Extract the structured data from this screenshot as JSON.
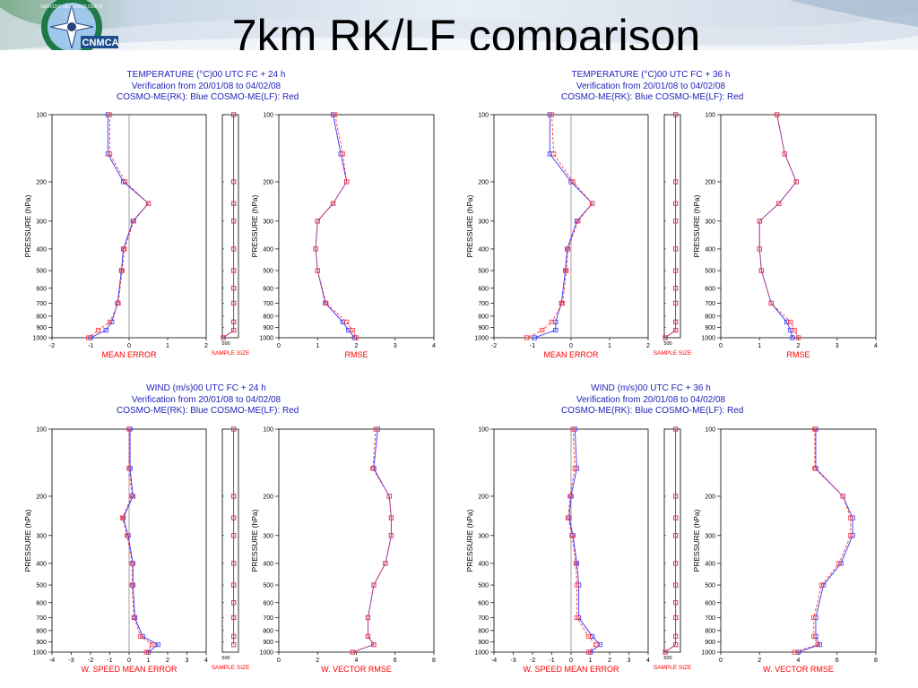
{
  "slide": {
    "title": "7km RK/LF comparison",
    "logo_text": "CNMCA",
    "logo_ring_text": "SERVIZIO METEOROLOGICO"
  },
  "panels": [
    {
      "line1": "TEMPERATURE (°C)00 UTC  FC + 24 h",
      "line2": "Verification from 20/01/08 to 04/02/08",
      "line3": "COSMO-ME(RK): Blue   COSMO-ME(LF): Red"
    },
    {
      "line1": "TEMPERATURE (°C)00 UTC  FC + 36 h",
      "line2": "Verification from 20/01/08 to 04/02/08",
      "line3": "COSMO-ME(RK): Blue   COSMO-ME(LF): Red"
    },
    {
      "line1": "WIND (m/s)00 UTC  FC + 24 h",
      "line2": "Verification from 20/01/08 to 04/02/08",
      "line3": "COSMO-ME(RK): Blue   COSMO-ME(LF): Red"
    },
    {
      "line1": "WIND (m/s)00 UTC  FC + 36 h",
      "line2": "Verification from 20/01/08 to 04/02/08",
      "line3": "COSMO-ME(RK): Blue   COSMO-ME(LF): Red"
    }
  ],
  "colors": {
    "rk": "#3333ff",
    "lf": "#ff3333",
    "label": "#ff0000",
    "axis": "#000000"
  },
  "chart_data": [
    {
      "type": "line",
      "panel": 0,
      "kind": "me",
      "xlabel": "MEAN ERROR",
      "ylabel": "PRESSURE (hPa)",
      "xlim": [
        -2,
        2
      ],
      "xticks": [
        "-2",
        "-1",
        "0",
        "1",
        "2"
      ],
      "levels": [
        100,
        150,
        200,
        250,
        300,
        400,
        500,
        700,
        850,
        925,
        1000
      ],
      "ytick_labels": [
        "100",
        "200",
        "300",
        "400",
        "500",
        "600",
        "700",
        "800",
        "900",
        "1000"
      ],
      "ytick_values": [
        100,
        200,
        300,
        400,
        500,
        600,
        700,
        800,
        900,
        1000
      ],
      "series": [
        {
          "name": "COSMO-ME(RK)",
          "values": [
            -0.55,
            -0.55,
            -0.15,
            0.5,
            0.1,
            -0.15,
            -0.2,
            -0.3,
            -0.45,
            -0.6,
            -1.0
          ]
        },
        {
          "name": "COSMO-ME(LF)",
          "values": [
            -0.5,
            -0.5,
            -0.1,
            0.5,
            0.12,
            -0.12,
            -0.18,
            -0.28,
            -0.5,
            -0.8,
            -1.05
          ]
        }
      ]
    },
    {
      "type": "line",
      "panel": 0,
      "kind": "ss",
      "xlabel": "SAMPLE SIZE",
      "xlim": [
        0,
        1000
      ],
      "xticks": [
        "500"
      ],
      "levels": [
        100,
        200,
        250,
        300,
        400,
        500,
        600,
        700,
        850,
        925,
        1000
      ],
      "series": [
        {
          "name": "COSMO-ME(RK)",
          "values": [
            700,
            700,
            700,
            700,
            700,
            700,
            700,
            700,
            700,
            700,
            60
          ]
        },
        {
          "name": "COSMO-ME(LF)",
          "values": [
            700,
            700,
            700,
            700,
            700,
            700,
            700,
            700,
            700,
            700,
            60
          ]
        }
      ]
    },
    {
      "type": "line",
      "panel": 0,
      "kind": "rmse",
      "xlabel": "RMSE",
      "xlim": [
        0,
        4
      ],
      "xticks": [
        "0",
        "1",
        "2",
        "3",
        "4"
      ],
      "levels": [
        100,
        150,
        200,
        250,
        300,
        400,
        500,
        700,
        850,
        925,
        1000
      ],
      "series": [
        {
          "name": "COSMO-ME(RK)",
          "values": [
            1.4,
            1.6,
            1.75,
            1.4,
            1.0,
            0.95,
            1.0,
            1.2,
            1.65,
            1.8,
            1.95
          ]
        },
        {
          "name": "COSMO-ME(LF)",
          "values": [
            1.45,
            1.65,
            1.75,
            1.4,
            1.0,
            0.95,
            1.0,
            1.22,
            1.75,
            1.9,
            2.0
          ]
        }
      ]
    },
    {
      "type": "line",
      "panel": 1,
      "kind": "me",
      "xlabel": "MEAN ERROR",
      "ylabel": "PRESSURE (hPa)",
      "xlim": [
        -2,
        2
      ],
      "xticks": [
        "-2",
        "-1",
        "0",
        "1",
        "2"
      ],
      "levels": [
        100,
        150,
        200,
        250,
        300,
        400,
        500,
        700,
        850,
        925,
        1000
      ],
      "ytick_labels": [
        "100",
        "200",
        "300",
        "400",
        "500",
        "600",
        "700",
        "800",
        "900",
        "1000"
      ],
      "ytick_values": [
        100,
        200,
        300,
        400,
        500,
        600,
        700,
        800,
        900,
        1000
      ],
      "series": [
        {
          "name": "COSMO-ME(RK)",
          "values": [
            -0.55,
            -0.55,
            0.0,
            0.55,
            0.15,
            -0.1,
            -0.15,
            -0.25,
            -0.4,
            -0.4,
            -0.95
          ]
        },
        {
          "name": "COSMO-ME(LF)",
          "values": [
            -0.5,
            -0.45,
            0.05,
            0.55,
            0.18,
            -0.08,
            -0.12,
            -0.22,
            -0.5,
            -0.75,
            -1.15
          ]
        }
      ]
    },
    {
      "type": "line",
      "panel": 1,
      "kind": "ss",
      "xlabel": "SAMPLE SIZE",
      "xlim": [
        0,
        1000
      ],
      "xticks": [
        "500"
      ],
      "levels": [
        100,
        200,
        250,
        300,
        400,
        500,
        600,
        700,
        850,
        925,
        1000
      ],
      "series": [
        {
          "name": "COSMO-ME(RK)",
          "values": [
            700,
            700,
            700,
            700,
            700,
            700,
            700,
            700,
            700,
            700,
            60
          ]
        },
        {
          "name": "COSMO-ME(LF)",
          "values": [
            700,
            700,
            700,
            700,
            700,
            700,
            700,
            700,
            700,
            700,
            60
          ]
        }
      ]
    },
    {
      "type": "line",
      "panel": 1,
      "kind": "rmse",
      "xlabel": "RMSE",
      "xlim": [
        0,
        4
      ],
      "xticks": [
        "0",
        "1",
        "2",
        "3",
        "4"
      ],
      "levels": [
        100,
        150,
        200,
        250,
        300,
        400,
        500,
        700,
        850,
        925,
        1000
      ],
      "series": [
        {
          "name": "COSMO-ME(RK)",
          "values": [
            1.45,
            1.65,
            1.95,
            1.5,
            1.0,
            1.0,
            1.05,
            1.3,
            1.7,
            1.8,
            1.85
          ]
        },
        {
          "name": "COSMO-ME(LF)",
          "values": [
            1.45,
            1.65,
            1.95,
            1.5,
            1.0,
            1.0,
            1.05,
            1.3,
            1.8,
            1.9,
            2.0
          ]
        }
      ]
    },
    {
      "type": "line",
      "panel": 2,
      "kind": "me",
      "xlabel": "W. SPEED MEAN ERROR",
      "ylabel": "PRESSURE (hPa)",
      "xlim": [
        -4,
        4
      ],
      "xticks": [
        "-4",
        "-3",
        "-2",
        "-1",
        "0",
        "1",
        "2",
        "3",
        "4"
      ],
      "levels": [
        100,
        150,
        200,
        250,
        300,
        400,
        500,
        700,
        850,
        925,
        1000
      ],
      "ytick_labels": [
        "100",
        "200",
        "300",
        "400",
        "500",
        "600",
        "700",
        "800",
        "900",
        "1000"
      ],
      "ytick_values": [
        100,
        200,
        300,
        400,
        500,
        600,
        700,
        800,
        900,
        1000
      ],
      "series": [
        {
          "name": "COSMO-ME(RK)",
          "values": [
            0.05,
            0.05,
            0.2,
            -0.3,
            -0.05,
            0.2,
            0.2,
            0.3,
            0.7,
            1.5,
            1.0
          ]
        },
        {
          "name": "COSMO-ME(LF)",
          "values": [
            0.0,
            0.0,
            0.15,
            -0.35,
            -0.1,
            0.15,
            0.15,
            0.25,
            0.6,
            1.2,
            0.9
          ]
        }
      ]
    },
    {
      "type": "line",
      "panel": 2,
      "kind": "ss",
      "xlabel": "SAMPLE SIZE",
      "xlim": [
        0,
        1000
      ],
      "xticks": [
        "500"
      ],
      "levels": [
        100,
        200,
        250,
        300,
        400,
        500,
        600,
        700,
        850,
        925
      ],
      "series": [
        {
          "name": "COSMO-ME(RK)",
          "values": [
            700,
            700,
            700,
            700,
            700,
            700,
            700,
            700,
            700,
            700
          ]
        },
        {
          "name": "COSMO-ME(LF)",
          "values": [
            700,
            700,
            700,
            700,
            700,
            700,
            700,
            700,
            700,
            700
          ]
        }
      ]
    },
    {
      "type": "line",
      "panel": 2,
      "kind": "rmse",
      "xlabel": "W. VECTOR RMSE",
      "xlim": [
        0,
        8
      ],
      "xticks": [
        "0",
        "2",
        "4",
        "6",
        "8"
      ],
      "levels": [
        100,
        150,
        200,
        250,
        300,
        400,
        500,
        700,
        850,
        925,
        1000
      ],
      "series": [
        {
          "name": "COSMO-ME(RK)",
          "values": [
            5.1,
            4.9,
            5.7,
            5.8,
            5.8,
            5.5,
            4.9,
            4.6,
            4.6,
            4.9,
            3.8
          ]
        },
        {
          "name": "COSMO-ME(LF)",
          "values": [
            5.0,
            4.85,
            5.7,
            5.8,
            5.8,
            5.5,
            4.9,
            4.6,
            4.6,
            4.9,
            3.8
          ]
        }
      ]
    },
    {
      "type": "line",
      "panel": 3,
      "kind": "me",
      "xlabel": "W. SPEED MEAN ERROR",
      "ylabel": "PRESSURE (hPa)",
      "xlim": [
        -4,
        4
      ],
      "xticks": [
        "-4",
        "-3",
        "-2",
        "-1",
        "0",
        "1",
        "2",
        "3",
        "4"
      ],
      "levels": [
        100,
        150,
        200,
        250,
        300,
        400,
        500,
        700,
        850,
        925,
        1000
      ],
      "ytick_labels": [
        "100",
        "200",
        "300",
        "400",
        "500",
        "600",
        "700",
        "800",
        "900",
        "1000"
      ],
      "ytick_values": [
        100,
        200,
        300,
        400,
        500,
        600,
        700,
        800,
        900,
        1000
      ],
      "series": [
        {
          "name": "COSMO-ME(RK)",
          "values": [
            0.2,
            0.3,
            0.0,
            -0.1,
            0.1,
            0.3,
            0.4,
            0.4,
            1.1,
            1.5,
            1.0
          ]
        },
        {
          "name": "COSMO-ME(LF)",
          "values": [
            0.1,
            0.2,
            -0.05,
            -0.15,
            0.05,
            0.25,
            0.3,
            0.3,
            0.9,
            1.3,
            0.9
          ]
        }
      ]
    },
    {
      "type": "line",
      "panel": 3,
      "kind": "ss",
      "xlabel": "SAMPLE SIZE",
      "xlim": [
        0,
        1000
      ],
      "xticks": [
        "500"
      ],
      "levels": [
        100,
        200,
        250,
        300,
        400,
        500,
        600,
        700,
        850,
        925,
        1000
      ],
      "series": [
        {
          "name": "COSMO-ME(RK)",
          "values": [
            700,
            700,
            700,
            700,
            700,
            700,
            700,
            700,
            700,
            700,
            60
          ]
        },
        {
          "name": "COSMO-ME(LF)",
          "values": [
            700,
            700,
            700,
            700,
            700,
            700,
            700,
            700,
            700,
            700,
            60
          ]
        }
      ]
    },
    {
      "type": "line",
      "panel": 3,
      "kind": "rmse",
      "xlabel": "W. VECTOR RMSE",
      "xlim": [
        0,
        8
      ],
      "xticks": [
        "0",
        "2",
        "4",
        "6",
        "8"
      ],
      "levels": [
        100,
        150,
        200,
        250,
        300,
        400,
        500,
        700,
        850,
        925,
        1000
      ],
      "series": [
        {
          "name": "COSMO-ME(RK)",
          "values": [
            4.9,
            4.9,
            6.3,
            6.8,
            6.8,
            6.2,
            5.3,
            4.9,
            4.9,
            5.1,
            4.0
          ]
        },
        {
          "name": "COSMO-ME(LF)",
          "values": [
            4.85,
            4.85,
            6.3,
            6.7,
            6.7,
            6.1,
            5.2,
            4.8,
            4.8,
            5.0,
            3.8
          ]
        }
      ]
    }
  ]
}
